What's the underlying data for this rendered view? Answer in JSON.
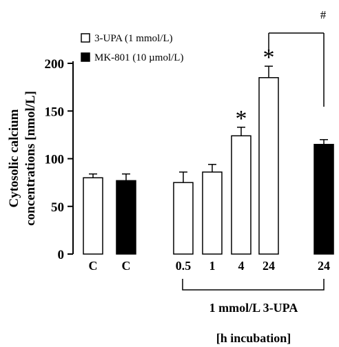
{
  "chart_data": {
    "type": "bar",
    "ylabel_line1": "Cytosolic calcium",
    "ylabel_line2": "concentrations [nmol/L]",
    "ylim": [
      0,
      200
    ],
    "yticks": [
      0,
      50,
      100,
      150,
      200
    ],
    "grid": false,
    "legend_position": "top-left",
    "legend": [
      {
        "name": "3-UPA (1 mmol/L)",
        "style": "open"
      },
      {
        "name": "MK-801 (10 µmol/L)",
        "style": "filled"
      }
    ],
    "bars": [
      {
        "label": "C",
        "value": 80,
        "error": 4,
        "style": "open",
        "star": false
      },
      {
        "label": "C",
        "value": 77,
        "error": 7,
        "style": "filled",
        "star": false
      },
      {
        "label": "0.5",
        "value": 75,
        "error": 11,
        "style": "open",
        "star": false
      },
      {
        "label": "1",
        "value": 86,
        "error": 8,
        "style": "open",
        "star": false
      },
      {
        "label": "4",
        "value": 124,
        "error": 9,
        "style": "open",
        "star": true
      },
      {
        "label": "24",
        "value": 185,
        "error": 12,
        "style": "open",
        "star": true
      },
      {
        "label": "24",
        "value": 115,
        "error": 5,
        "style": "filled",
        "star": false
      }
    ],
    "star_symbol": "*",
    "comparison_symbol": "#",
    "group_label": "1 mmol/L 3-UPA",
    "group_sublabel": "[h incubation]"
  }
}
